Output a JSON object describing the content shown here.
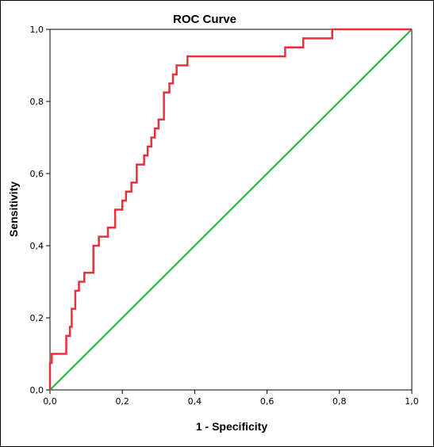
{
  "chart_data": {
    "type": "line",
    "title": "ROC Curve",
    "xlabel": "1 - Specificity",
    "ylabel": "Sensitivity",
    "xlim": [
      0,
      1
    ],
    "ylim": [
      0,
      1
    ],
    "grid": false,
    "x_ticks": [
      "0,0",
      "0,2",
      "0,4",
      "0,6",
      "0,8",
      "1,0"
    ],
    "y_ticks": [
      "0,0",
      "0,2",
      "0,4",
      "0,6",
      "0,8",
      "1,0"
    ],
    "series": [
      {
        "color": "#e8303c",
        "points": [
          [
            0,
            0
          ],
          [
            0,
            0.075
          ],
          [
            0.005,
            0.075
          ],
          [
            0.005,
            0.1
          ],
          [
            0.045,
            0.1
          ],
          [
            0.045,
            0.15
          ],
          [
            0.055,
            0.15
          ],
          [
            0.055,
            0.175
          ],
          [
            0.06,
            0.175
          ],
          [
            0.06,
            0.225
          ],
          [
            0.07,
            0.225
          ],
          [
            0.07,
            0.275
          ],
          [
            0.08,
            0.275
          ],
          [
            0.08,
            0.3
          ],
          [
            0.095,
            0.3
          ],
          [
            0.095,
            0.325
          ],
          [
            0.12,
            0.325
          ],
          [
            0.12,
            0.4
          ],
          [
            0.135,
            0.4
          ],
          [
            0.135,
            0.425
          ],
          [
            0.16,
            0.425
          ],
          [
            0.16,
            0.45
          ],
          [
            0.18,
            0.45
          ],
          [
            0.18,
            0.5
          ],
          [
            0.2,
            0.5
          ],
          [
            0.2,
            0.525
          ],
          [
            0.21,
            0.525
          ],
          [
            0.21,
            0.55
          ],
          [
            0.225,
            0.55
          ],
          [
            0.225,
            0.575
          ],
          [
            0.24,
            0.575
          ],
          [
            0.24,
            0.625
          ],
          [
            0.26,
            0.625
          ],
          [
            0.26,
            0.65
          ],
          [
            0.27,
            0.65
          ],
          [
            0.27,
            0.675
          ],
          [
            0.28,
            0.675
          ],
          [
            0.28,
            0.7
          ],
          [
            0.29,
            0.7
          ],
          [
            0.29,
            0.725
          ],
          [
            0.3,
            0.725
          ],
          [
            0.3,
            0.75
          ],
          [
            0.315,
            0.75
          ],
          [
            0.315,
            0.825
          ],
          [
            0.33,
            0.825
          ],
          [
            0.33,
            0.85
          ],
          [
            0.34,
            0.85
          ],
          [
            0.34,
            0.875
          ],
          [
            0.35,
            0.875
          ],
          [
            0.35,
            0.9
          ],
          [
            0.38,
            0.9
          ],
          [
            0.38,
            0.925
          ],
          [
            0.65,
            0.925
          ],
          [
            0.65,
            0.95
          ],
          [
            0.7,
            0.95
          ],
          [
            0.7,
            0.975
          ],
          [
            0.78,
            0.975
          ],
          [
            0.78,
            1
          ],
          [
            1,
            1
          ]
        ]
      },
      {
        "color": "#2db34a",
        "points": [
          [
            0,
            0
          ],
          [
            1,
            1
          ]
        ]
      }
    ]
  }
}
